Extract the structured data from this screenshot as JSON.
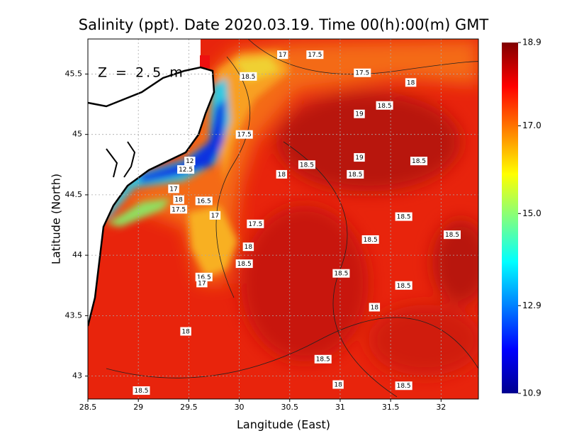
{
  "title": "Salinity (ppt). Date 2020.03.19. Time 00(h):00(m) GMT",
  "annotation": "Z = 2.5 m",
  "x_axis": {
    "label": "Langitude (East)",
    "lim": [
      28.5,
      32.37
    ],
    "ticks": [
      28.5,
      29,
      29.5,
      30,
      30.5,
      31,
      31.5,
      32
    ]
  },
  "y_axis": {
    "label": "Latitude (North)",
    "lim": [
      42.81,
      45.79
    ],
    "ticks": [
      43,
      43.5,
      44,
      44.5,
      45,
      45.5
    ]
  },
  "grid": true,
  "colorbar": {
    "lim": [
      10.9,
      18.9
    ],
    "ticks": [
      18.9,
      {
        "value": 17,
        "label": "17.0"
      },
      {
        "value": 15,
        "label": "15.0"
      },
      12.9,
      10.9
    ],
    "colors": [
      "#00008f",
      "#0000ff",
      "#0080ff",
      "#00ffff",
      "#80ff80",
      "#ffff00",
      "#ff8000",
      "#ff0000",
      "#800000"
    ]
  },
  "contour_labels": [
    {
      "value": 17,
      "lon": 30.43,
      "lat": 45.66
    },
    {
      "value": 17.5,
      "lon": 30.75,
      "lat": 45.66
    },
    {
      "value": 18.5,
      "lon": 30.09,
      "lat": 45.48
    },
    {
      "value": 17.5,
      "lon": 31.22,
      "lat": 45.51
    },
    {
      "value": 18,
      "lon": 31.7,
      "lat": 45.43
    },
    {
      "value": 18.5,
      "lon": 31.44,
      "lat": 45.24
    },
    {
      "value": 19,
      "lon": 31.19,
      "lat": 45.17
    },
    {
      "value": 17.5,
      "lon": 30.05,
      "lat": 45.0
    },
    {
      "value": 19,
      "lon": 31.19,
      "lat": 44.81
    },
    {
      "value": 18.5,
      "lon": 31.78,
      "lat": 44.78
    },
    {
      "value": 18.5,
      "lon": 30.67,
      "lat": 44.75
    },
    {
      "value": 18,
      "lon": 30.42,
      "lat": 44.67
    },
    {
      "value": 18.5,
      "lon": 31.15,
      "lat": 44.67
    },
    {
      "value": 12,
      "lon": 29.51,
      "lat": 44.78
    },
    {
      "value": 12.5,
      "lon": 29.47,
      "lat": 44.71
    },
    {
      "value": 17,
      "lon": 29.35,
      "lat": 44.55
    },
    {
      "value": 18,
      "lon": 29.4,
      "lat": 44.46
    },
    {
      "value": 17.5,
      "lon": 29.4,
      "lat": 44.38
    },
    {
      "value": 16.5,
      "lon": 29.65,
      "lat": 44.45
    },
    {
      "value": 17,
      "lon": 29.76,
      "lat": 44.33
    },
    {
      "value": 17.5,
      "lon": 30.16,
      "lat": 44.26
    },
    {
      "value": 18.5,
      "lon": 31.63,
      "lat": 44.32
    },
    {
      "value": 18.5,
      "lon": 31.3,
      "lat": 44.13
    },
    {
      "value": 18.5,
      "lon": 32.11,
      "lat": 44.17
    },
    {
      "value": 18,
      "lon": 30.09,
      "lat": 44.07
    },
    {
      "value": 18.5,
      "lon": 30.05,
      "lat": 43.93
    },
    {
      "value": 18.5,
      "lon": 31.01,
      "lat": 43.85
    },
    {
      "value": 16.5,
      "lon": 29.65,
      "lat": 43.82
    },
    {
      "value": 17,
      "lon": 29.63,
      "lat": 43.77
    },
    {
      "value": 18.5,
      "lon": 31.63,
      "lat": 43.75
    },
    {
      "value": 18,
      "lon": 31.34,
      "lat": 43.57
    },
    {
      "value": 18,
      "lon": 29.47,
      "lat": 43.37
    },
    {
      "value": 18.5,
      "lon": 30.83,
      "lat": 43.14
    },
    {
      "value": 18,
      "lon": 30.98,
      "lat": 42.93
    },
    {
      "value": 18.5,
      "lon": 31.63,
      "lat": 42.92
    },
    {
      "value": 18.5,
      "lon": 29.03,
      "lat": 42.88
    }
  ]
}
